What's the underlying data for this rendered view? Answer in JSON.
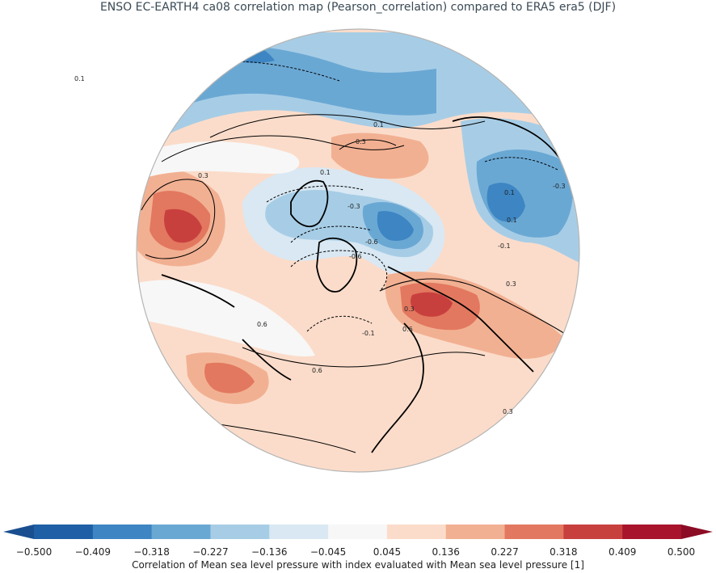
{
  "title": "ENSO EC-EARTH4 ca08 correlation map (Pearson_correlation) compared to ERA5 era5 (DJF)",
  "map": {
    "projection": "north-polar-stereographic",
    "variable": "Mean sea level pressure",
    "contour_labels": [
      "0.1",
      "0.1",
      "0.1",
      "0.3",
      "0.3",
      "-0.3",
      "-0.6",
      "-0.6",
      "0.3",
      "-0.1",
      "0.6",
      "0.6",
      "0.6",
      "-0.1",
      "0.3",
      "0.1",
      "-0.3",
      "0.1",
      "0.3"
    ]
  },
  "colorbar": {
    "ticks": [
      "−0.500",
      "−0.409",
      "−0.318",
      "−0.227",
      "−0.136",
      "−0.045",
      "0.045",
      "0.136",
      "0.227",
      "0.318",
      "0.409",
      "0.500"
    ],
    "colors": [
      "#1f5fa6",
      "#3d85c3",
      "#6aa8d4",
      "#a7cde6",
      "#d9e8f3",
      "#f7f7f7",
      "#fbdcca",
      "#f2b092",
      "#e2785f",
      "#c8403e",
      "#a7142c"
    ],
    "extend_low_color": "#1a4f8f",
    "extend_high_color": "#8c0c25",
    "label": "Correlation of Mean sea level pressure with index evaluated with Mean sea level pressure [1]"
  }
}
